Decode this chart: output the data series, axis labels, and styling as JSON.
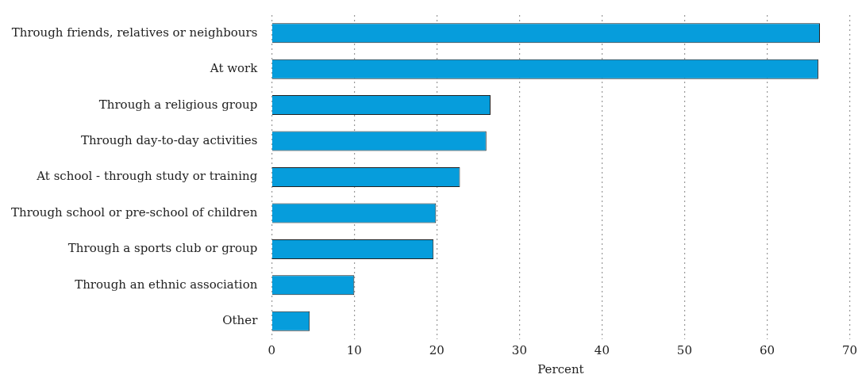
{
  "chart_data": {
    "type": "bar",
    "orientation": "horizontal",
    "xlabel": "Percent",
    "categories": [
      "Through friends, relatives or neighbours",
      "At work",
      "Through a religious group",
      "Through day-to-day activities",
      "At school - through study or training",
      "Through school or pre-school of children",
      "Through a sports club or group",
      "Through an ethnic association",
      "Other"
    ],
    "values": [
      66.4,
      66.2,
      26.5,
      26.0,
      22.8,
      19.9,
      19.6,
      10.0,
      4.6
    ],
    "color": "#069ddc",
    "xlim": [
      0,
      70
    ],
    "xticks": [
      0,
      10,
      20,
      30,
      40,
      50,
      60,
      70
    ],
    "grid": "x",
    "legend": false
  }
}
